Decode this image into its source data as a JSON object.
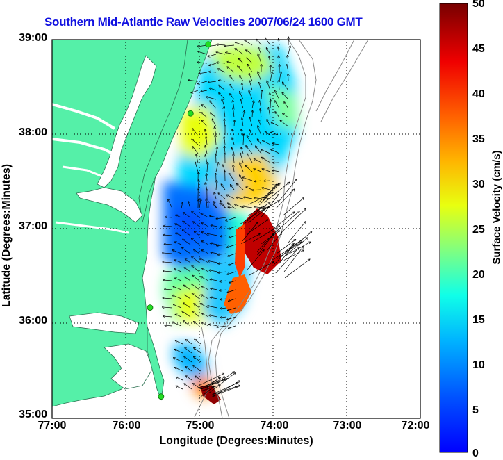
{
  "title": "Southern Mid-Atlantic Raw Velocities 2007/06/24 1600 GMT",
  "axes": {
    "xlabel": "Longitude (Degrees:Minutes)",
    "ylabel": "Latitude (Degrees:Minutes)",
    "xticks": [
      "77:00",
      "76:00",
      "75:00",
      "74:00",
      "73:00",
      "72:00"
    ],
    "yticks": [
      "39:00",
      "38:00",
      "37:00",
      "36:00",
      "35:00"
    ]
  },
  "colorbar": {
    "label": "Surface Velocity (cm/s)",
    "ticks": [
      "50",
      "45",
      "40",
      "35",
      "30",
      "25",
      "20",
      "15",
      "10",
      "5",
      "0"
    ],
    "range": [
      0,
      50
    ]
  },
  "colors": {
    "land": "#55f0a8",
    "ocean": "#ffffff",
    "title": "#1010e0",
    "station": "#22dd22"
  },
  "stations": [
    {
      "lon": -74.88,
      "lat": 38.95
    },
    {
      "lon": -75.12,
      "lat": 38.22
    },
    {
      "lon": -75.67,
      "lat": 36.17
    },
    {
      "lon": -75.52,
      "lat": 35.23
    }
  ]
}
